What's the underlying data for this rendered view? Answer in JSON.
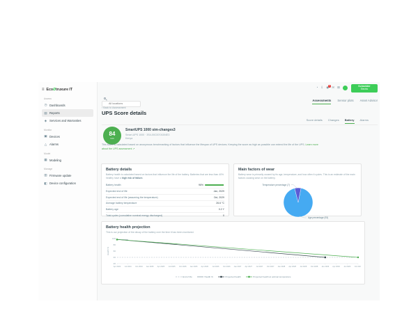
{
  "brand": {
    "prefix": "Eco",
    "logo_glyph": "Ø",
    "suffix": "truxure IT",
    "vendor_line1": "Schneider",
    "vendor_line2": "Electric"
  },
  "icon_glyphs": {
    "hamburger": "≡",
    "dashboard": "◷",
    "reports": "▤",
    "services": "◈",
    "devices": "▣",
    "alarms": "△",
    "modeling": "▦",
    "firmware": "▥",
    "config": "◧",
    "gauge": "◔",
    "download": "⇩",
    "bell": "◉",
    "mail": "✉",
    "apps": "⊞"
  },
  "sidebar": {
    "sections": [
      {
        "label": "Assess",
        "items": [
          {
            "label": "Dashboards"
          },
          {
            "label": "Reports"
          },
          {
            "label": "Services and Warranties"
          }
        ]
      },
      {
        "label": "Monitor",
        "items": [
          {
            "label": "Devices"
          },
          {
            "label": "Alarms"
          }
        ]
      },
      {
        "label": "Model",
        "items": [
          {
            "label": "Modeling"
          }
        ]
      },
      {
        "label": "Manage",
        "items": [
          {
            "label": "Firmware update"
          },
          {
            "label": "Device configuration"
          }
        ]
      }
    ]
  },
  "topbar": {
    "search_placeholder": "All locations",
    "notification_badge": "9"
  },
  "tabs": {
    "assessments": "Assessments",
    "sensor_plots": "Sensor plots",
    "asset_advisor": "Asset Advisor"
  },
  "page": {
    "back_link": "‹ Back to Assessment",
    "title": "UPS Score details",
    "subtabs": {
      "score_details": "Score details",
      "changes": "Changes",
      "battery": "Battery",
      "alarms": "Alarms"
    }
  },
  "device": {
    "score": "84",
    "score_denominator": "/100",
    "name": "SmartUPS 1000 sim-changes3",
    "model_serial": "Smart-UPS 1000 · 3S4-00C007A304E3",
    "location": "Kenya",
    "description_line1": "This score is calculated based on anonymous benchmarking of factors that influence the lifespan of UPS devices.",
    "description_line2": "Keeping the score as high as possible can extend the life of the UPS.",
    "learn_more": "Learn more about the UPS assessment ↗"
  },
  "battery_details": {
    "title": "Battery details",
    "description": "Battery health is calculated based on factors that influence the life of the battery. Batteries that are less than 40% healthy have a ",
    "description_bold": "high risk of failure.",
    "rows": [
      {
        "label": "Battery health",
        "value": "96%",
        "bar": 96
      },
      {
        "label": "Expected end of life",
        "value": "Jan, 2029"
      },
      {
        "label": "Expected end of life (assuming the temperature)",
        "value": "Oct, 2029"
      },
      {
        "label": "Average battery temperature",
        "value": "26.6 °C"
      },
      {
        "label": "Battery age",
        "value": "0.2 Y"
      },
      {
        "label": "Total cycles (cumulative nominal energy discharged)",
        "value": "0"
      }
    ]
  },
  "wear": {
    "title": "Main factors of wear",
    "description": "Battery wear is primarily caused by its age, temperature, and how often it cycles. This is an estimate of the main factors causing wear on the battery."
  },
  "projection": {
    "title": "Battery health projection",
    "description": "This is our projection of the decay of the battery over the time it has been monitored."
  },
  "chart_data": [
    {
      "type": "pie",
      "title": "Main factors of wear",
      "slices": [
        {
          "label": "Age percentage (93)",
          "value": 93,
          "color": "#45aaf2"
        },
        {
          "label": "Temperature percentage (7)",
          "value": 7,
          "color": "#5b5bd6"
        }
      ],
      "start_angle_deg": 11.2,
      "legend_position": "callout-labels"
    },
    {
      "type": "line",
      "title": "Battery health projection",
      "ylabel": "Health %",
      "ylim": [
        20,
        100
      ],
      "yticks": [
        100,
        80,
        60,
        40,
        20
      ],
      "grid": false,
      "x": [
        "Apr 2024",
        "Jul 2024",
        "Oct 2024",
        "Jan 2025",
        "Apr 2025",
        "Jul 2025",
        "Oct 2025",
        "Jan 2026",
        "Apr 2026",
        "Jul 2026",
        "Oct 2026",
        "Jan 2027",
        "Apr 2027",
        "Jul 2027",
        "Oct 2027",
        "Jan 2028",
        "Apr 2028",
        "Jul 2028",
        "Oct 2028",
        "Jan 2029",
        "Apr 2029",
        "Jul 2029",
        "Oct 2029"
      ],
      "series": [
        {
          "name": "End of life",
          "color": "#b0bec5",
          "dashed": true,
          "constant": 40
        },
        {
          "name": "Health %",
          "color": "#78909c",
          "points": [
            [
              0,
              97
            ],
            [
              1,
              96
            ]
          ]
        },
        {
          "name": "Projected health",
          "color": "#37474f",
          "points": [
            [
              0,
              97
            ],
            [
              19,
              40
            ]
          ],
          "end_marker": "square"
        },
        {
          "name": "Projected health at optimal temperature",
          "color": "#4caf50",
          "points": [
            [
              0,
              97
            ],
            [
              22,
              40
            ]
          ],
          "start_marker": "square",
          "end_marker": "circle"
        }
      ],
      "legend": [
        "End of life",
        "Health %",
        "Projected health",
        "Projected health at optimal temperature"
      ],
      "legend_position": "bottom"
    }
  ]
}
